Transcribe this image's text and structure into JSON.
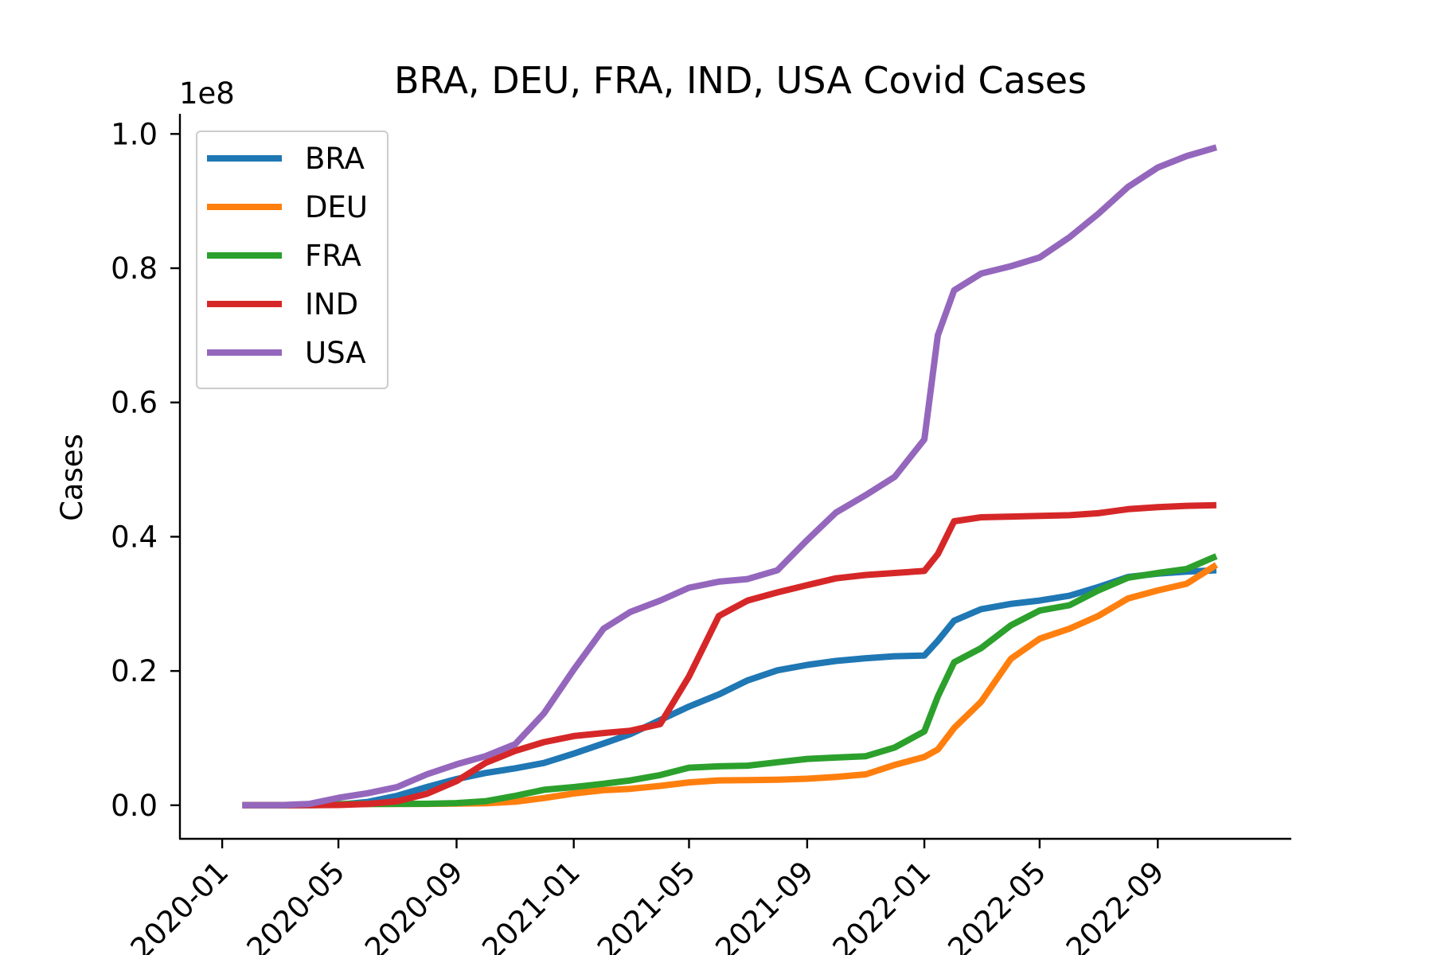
{
  "chart_data": {
    "type": "line",
    "title": "BRA, DEU, FRA, IND, USA Covid Cases",
    "xlabel": "",
    "ylabel": "Cases",
    "y_offset_label": "1e8",
    "y_scale_factor": 100000000,
    "xlim": [
      "2019-11-18",
      "2023-01-18"
    ],
    "ylim": [
      -5000000,
      103000000
    ],
    "x_ticks": [
      "2020-01",
      "2020-05",
      "2020-09",
      "2021-01",
      "2021-05",
      "2021-09",
      "2022-01",
      "2022-05",
      "2022-09"
    ],
    "y_ticks": [
      0,
      20000000,
      40000000,
      60000000,
      80000000,
      100000000
    ],
    "y_tick_labels": [
      "0.0",
      "0.2",
      "0.4",
      "0.6",
      "0.8",
      "1.0"
    ],
    "grid": false,
    "legend_position": "upper left",
    "x": [
      "2020-01-22",
      "2020-03-01",
      "2020-04-01",
      "2020-05-01",
      "2020-06-01",
      "2020-07-01",
      "2020-08-01",
      "2020-09-01",
      "2020-10-01",
      "2020-11-01",
      "2020-12-01",
      "2021-01-01",
      "2021-02-01",
      "2021-03-01",
      "2021-04-01",
      "2021-05-01",
      "2021-06-01",
      "2021-07-01",
      "2021-08-01",
      "2021-09-01",
      "2021-10-01",
      "2021-11-01",
      "2021-12-01",
      "2022-01-01",
      "2022-01-15",
      "2022-02-01",
      "2022-03-01",
      "2022-04-01",
      "2022-05-01",
      "2022-06-01",
      "2022-07-01",
      "2022-08-01",
      "2022-09-01",
      "2022-10-01",
      "2022-11-01"
    ],
    "series": [
      {
        "name": "BRA",
        "color": "#1f77b4",
        "values": [
          0,
          0,
          6000,
          90000,
          500000,
          1400000,
          2700000,
          3900000,
          4800000,
          5500000,
          6300000,
          7700000,
          9200000,
          10600000,
          12700000,
          14700000,
          16500000,
          18600000,
          20100000,
          20900000,
          21500000,
          21900000,
          22200000,
          22300000,
          24500000,
          27500000,
          29200000,
          30000000,
          30500000,
          31200000,
          32500000,
          34000000,
          34500000,
          34800000,
          35000000
        ]
      },
      {
        "name": "DEU",
        "color": "#ff7f0e",
        "values": [
          0,
          100,
          70000,
          160000,
          180000,
          200000,
          210000,
          240000,
          290000,
          530000,
          1070000,
          1760000,
          2240000,
          2450000,
          2880000,
          3400000,
          3700000,
          3740000,
          3800000,
          3950000,
          4220000,
          4600000,
          6000000,
          7200000,
          8300000,
          11500000,
          15400000,
          21800000,
          24800000,
          26300000,
          28200000,
          30800000,
          32000000,
          33000000,
          35800000
        ]
      },
      {
        "name": "FRA",
        "color": "#2ca02c",
        "values": [
          0,
          100,
          56000,
          170000,
          190000,
          200000,
          220000,
          320000,
          600000,
          1400000,
          2300000,
          2700000,
          3200000,
          3700000,
          4500000,
          5600000,
          5800000,
          5900000,
          6400000,
          6900000,
          7100000,
          7300000,
          8600000,
          11000000,
          16200000,
          21300000,
          23400000,
          26800000,
          29000000,
          29800000,
          32000000,
          33900000,
          34600000,
          35200000,
          37100000
        ]
      },
      {
        "name": "IND",
        "color": "#d62728",
        "values": [
          0,
          3,
          1600,
          35000,
          190000,
          580000,
          1700000,
          3600000,
          6300000,
          8100000,
          9400000,
          10300000,
          10750000,
          11100000,
          12100000,
          19200000,
          28200000,
          30500000,
          31700000,
          32800000,
          33800000,
          34300000,
          34600000,
          34900000,
          37400000,
          42300000,
          42900000,
          43000000,
          43100000,
          43200000,
          43500000,
          44100000,
          44400000,
          44600000,
          44700000
        ]
      },
      {
        "name": "USA",
        "color": "#9467bd",
        "values": [
          1,
          30,
          210000,
          1100000,
          1800000,
          2700000,
          4600000,
          6100000,
          7300000,
          9100000,
          13700000,
          20200000,
          26300000,
          28800000,
          30500000,
          32400000,
          33300000,
          33700000,
          35000000,
          39500000,
          43600000,
          46200000,
          48900000,
          54500000,
          70000000,
          76700000,
          79200000,
          80300000,
          81600000,
          84600000,
          88100000,
          92100000,
          95000000,
          96700000,
          98000000
        ]
      }
    ]
  }
}
